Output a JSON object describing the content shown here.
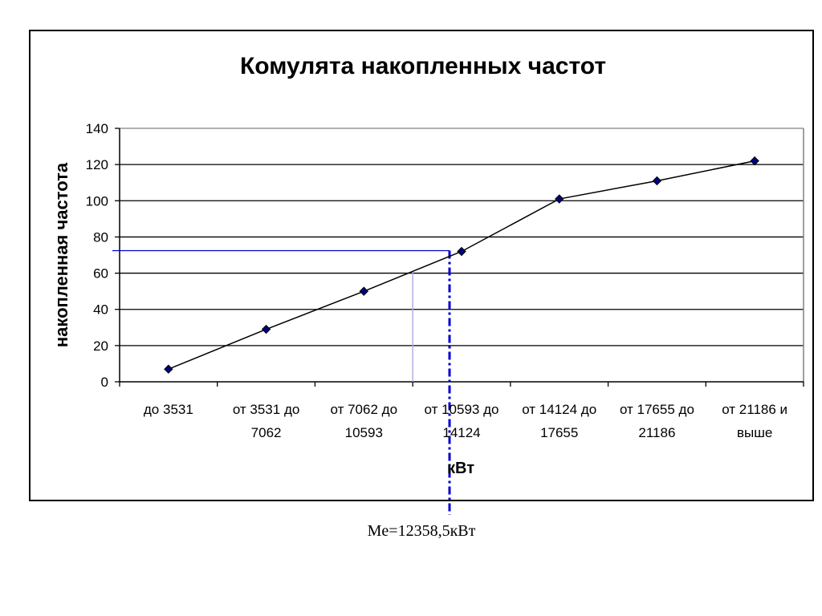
{
  "chart_data": {
    "type": "line",
    "title": "Комулята накопленных частот",
    "xlabel": "кВт",
    "ylabel": "накопленная частота",
    "categories": [
      [
        "до 3531"
      ],
      [
        "от 3531 до",
        "7062"
      ],
      [
        "от 7062 до",
        "10593"
      ],
      [
        "от 10593 до",
        "14124"
      ],
      [
        "от 14124 до",
        "17655"
      ],
      [
        "от 17655 до",
        "21186"
      ],
      [
        "от 21186 и",
        "выше"
      ]
    ],
    "series": [
      {
        "values": [
          7,
          29,
          50,
          72,
          101,
          111,
          122
        ]
      }
    ],
    "ylim": [
      0,
      140
    ],
    "yticks": [
      0,
      20,
      40,
      60,
      80,
      100,
      120,
      140
    ],
    "grid": true,
    "legend": "none",
    "line_color": "#000000",
    "marker_color": "#000080",
    "median_line_color": "#0000cc",
    "median_annotation": "Me=12358,5кВт"
  }
}
